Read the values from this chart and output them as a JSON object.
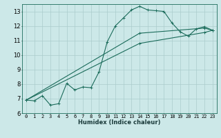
{
  "title": "",
  "xlabel": "Humidex (Indice chaleur)",
  "bg_color": "#cce8e8",
  "grid_color": "#aacccc",
  "line_color": "#1a6b5a",
  "xlim": [
    -0.5,
    23.5
  ],
  "ylim": [
    6,
    13.5
  ],
  "xticks": [
    0,
    1,
    2,
    3,
    4,
    5,
    6,
    7,
    8,
    9,
    10,
    11,
    12,
    13,
    14,
    15,
    16,
    17,
    18,
    19,
    20,
    21,
    22,
    23
  ],
  "yticks": [
    6,
    7,
    8,
    9,
    10,
    11,
    12,
    13
  ],
  "line1_x": [
    0,
    1,
    2,
    3,
    4,
    5,
    6,
    7,
    8,
    9,
    10,
    11,
    12,
    13,
    14,
    15,
    16,
    17,
    18,
    19,
    20,
    21,
    22,
    23
  ],
  "line1_y": [
    6.9,
    6.85,
    7.2,
    6.55,
    6.65,
    8.05,
    7.6,
    7.8,
    7.75,
    8.85,
    10.9,
    12.0,
    12.55,
    13.1,
    13.35,
    13.1,
    13.05,
    13.0,
    12.2,
    11.6,
    11.3,
    11.8,
    11.95,
    11.7
  ],
  "line2_x": [
    0,
    14,
    22,
    23
  ],
  "line2_y": [
    6.9,
    11.5,
    11.85,
    11.7
  ],
  "line3_x": [
    0,
    14,
    22,
    23
  ],
  "line3_y": [
    6.9,
    10.8,
    11.55,
    11.7
  ],
  "xlabel_fontsize": 6,
  "tick_fontsize": 5,
  "ytick_fontsize": 6
}
